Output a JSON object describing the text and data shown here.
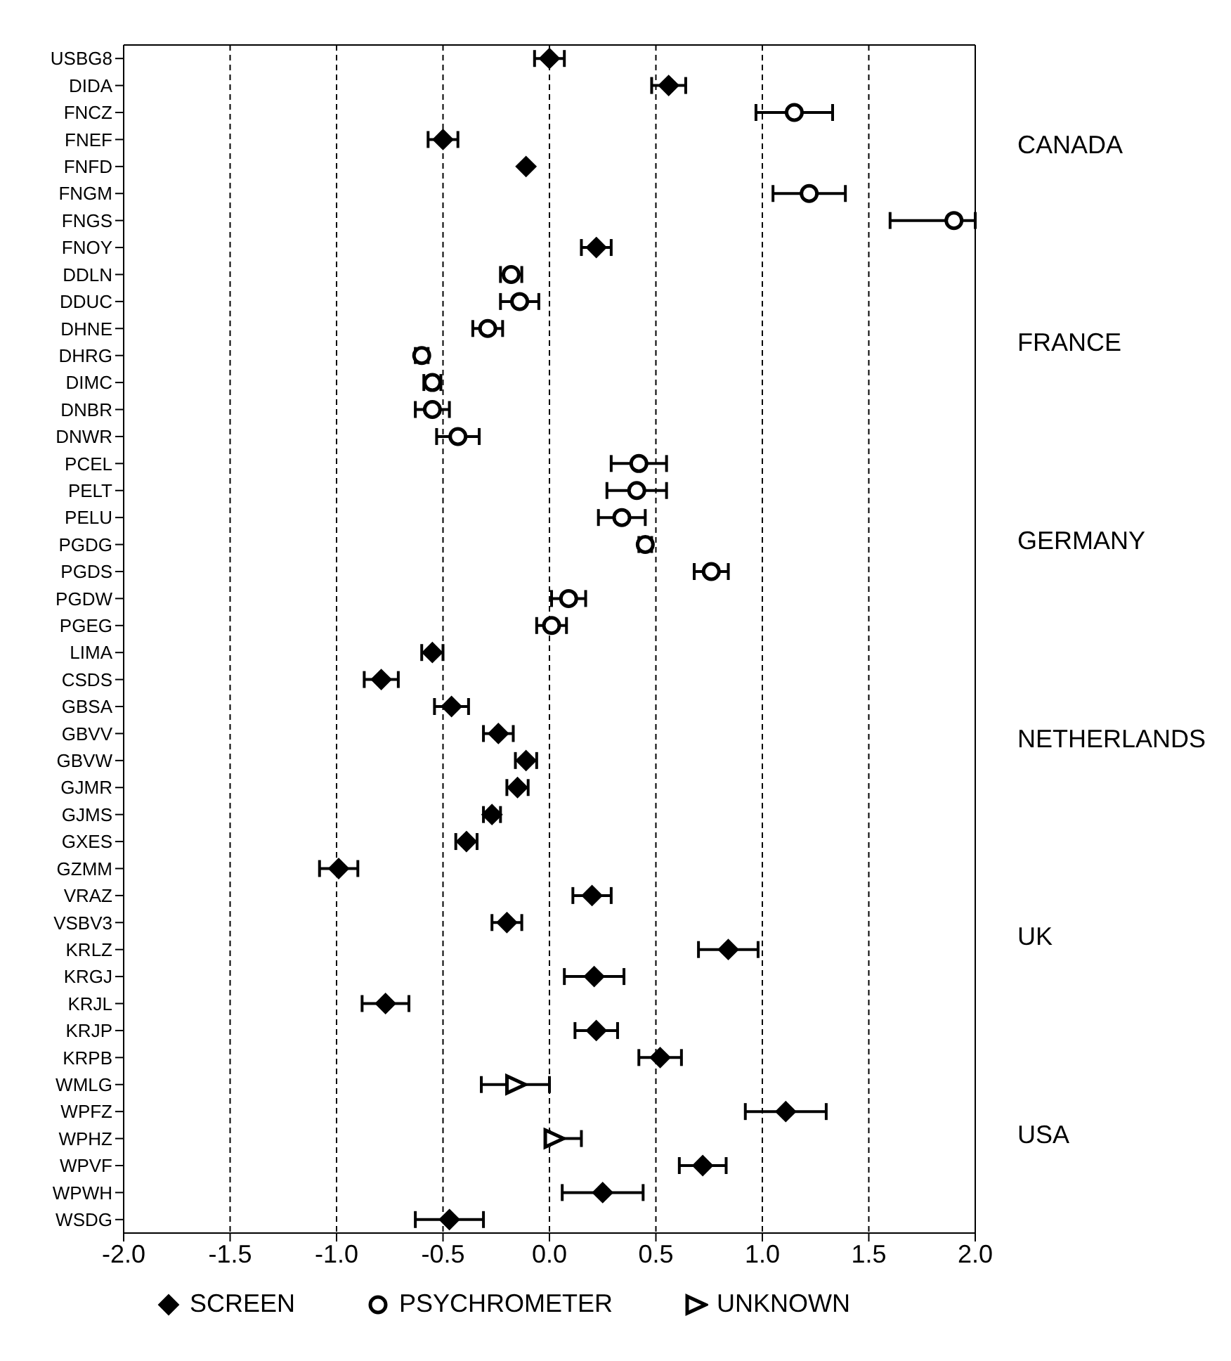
{
  "chart_data": {
    "type": "scatter",
    "orientation": "horizontal",
    "categories": [
      "USBG8",
      "DIDA",
      "FNCZ",
      "FNEF",
      "FNFD",
      "FNGM",
      "FNGS",
      "FNOY",
      "DDLN",
      "DDUC",
      "DHNE",
      "DHRG",
      "DIMC",
      "DNBR",
      "DNWR",
      "PCEL",
      "PELT",
      "PELU",
      "PGDG",
      "PGDS",
      "PGDW",
      "PGEG",
      "LIMA",
      "CSDS",
      "GBSA",
      "GBVV",
      "GBVW",
      "GJMR",
      "GJMS",
      "GXES",
      "GZMM",
      "VRAZ",
      "VSBV3",
      "KRLZ",
      "KRGJ",
      "KRJL",
      "KRJP",
      "KRPB",
      "WMLG",
      "WPFZ",
      "WPHZ",
      "WPVF",
      "WPWH",
      "WSDG"
    ],
    "series": [
      {
        "name": "SCREEN",
        "color": "#000000",
        "marker": "diamond",
        "values": [
          0.0,
          0.56,
          null,
          -0.5,
          -0.11,
          null,
          null,
          0.22,
          null,
          null,
          null,
          null,
          null,
          null,
          null,
          null,
          null,
          null,
          null,
          null,
          null,
          null,
          -0.55,
          -0.79,
          -0.46,
          -0.24,
          -0.11,
          -0.15,
          -0.27,
          -0.39,
          -0.99,
          0.2,
          -0.2,
          0.84,
          0.21,
          -0.77,
          0.22,
          0.52,
          null,
          1.11,
          null,
          0.72,
          0.25,
          -0.47
        ],
        "errors": [
          0.07,
          0.08,
          null,
          0.07,
          null,
          null,
          null,
          0.07,
          null,
          null,
          null,
          null,
          null,
          null,
          null,
          null,
          null,
          null,
          null,
          null,
          null,
          null,
          0.05,
          0.08,
          0.08,
          0.07,
          0.05,
          0.05,
          0.04,
          0.05,
          0.09,
          0.09,
          0.07,
          0.14,
          0.14,
          0.11,
          0.1,
          0.1,
          null,
          0.19,
          null,
          0.11,
          0.19,
          0.16
        ]
      },
      {
        "name": "PSYCHROMETER",
        "color": "#000000",
        "marker": "circle",
        "values": [
          null,
          null,
          1.15,
          null,
          null,
          1.22,
          1.9,
          null,
          -0.18,
          -0.14,
          -0.29,
          -0.6,
          -0.55,
          -0.55,
          -0.43,
          0.42,
          0.41,
          0.34,
          0.45,
          0.76,
          0.09,
          0.01,
          null,
          null,
          null,
          null,
          null,
          null,
          null,
          null,
          null,
          null,
          null,
          null,
          null,
          null,
          null,
          null,
          null,
          null,
          null,
          null,
          null,
          null
        ],
        "errors": [
          null,
          null,
          0.18,
          null,
          null,
          0.17,
          [
            1.6,
            2.0
          ],
          null,
          0.05,
          0.09,
          0.07,
          0.03,
          0.04,
          0.08,
          0.1,
          0.13,
          0.14,
          0.11,
          0.03,
          0.08,
          0.08,
          0.07,
          null,
          null,
          null,
          null,
          null,
          null,
          null,
          null,
          null,
          null,
          null,
          null,
          null,
          null,
          null,
          null,
          null,
          null,
          null,
          null,
          null,
          null
        ]
      },
      {
        "name": "UNKNOWN",
        "color": "#000000",
        "marker": "triangle",
        "values": [
          null,
          null,
          null,
          null,
          null,
          null,
          null,
          null,
          null,
          null,
          null,
          null,
          null,
          null,
          null,
          null,
          null,
          null,
          null,
          null,
          null,
          null,
          null,
          null,
          null,
          null,
          null,
          null,
          null,
          null,
          null,
          null,
          null,
          null,
          null,
          null,
          null,
          null,
          -0.16,
          null,
          0.02,
          null,
          null,
          null
        ],
        "errors": [
          null,
          null,
          null,
          null,
          null,
          null,
          null,
          null,
          null,
          null,
          null,
          null,
          null,
          null,
          null,
          null,
          null,
          null,
          null,
          null,
          null,
          null,
          null,
          null,
          null,
          null,
          null,
          null,
          null,
          null,
          null,
          null,
          null,
          null,
          null,
          null,
          null,
          null,
          0.16,
          null,
          [
            0.0,
            0.15
          ],
          null,
          null,
          null
        ]
      }
    ],
    "xlim": [
      -2.0,
      2.0
    ],
    "xticks": [
      {
        "value": -2,
        "label": "-2.0"
      },
      {
        "value": -1.5,
        "label": "-1.5"
      },
      {
        "value": -1,
        "label": "-1.0"
      },
      {
        "value": -0.5,
        "label": "-0.5"
      },
      {
        "value": 0,
        "label": "0.0"
      },
      {
        "value": 0.5,
        "label": "0.5"
      },
      {
        "value": 1,
        "label": "1.0"
      },
      {
        "value": 1.5,
        "label": "1.5"
      },
      {
        "value": 2,
        "label": "2.0"
      }
    ],
    "grid": "x",
    "legend": "bottom",
    "annotations": [
      "CANADA",
      "FRANCE",
      "GERMANY",
      "NETHERLANDS",
      "UK",
      "USA"
    ]
  }
}
